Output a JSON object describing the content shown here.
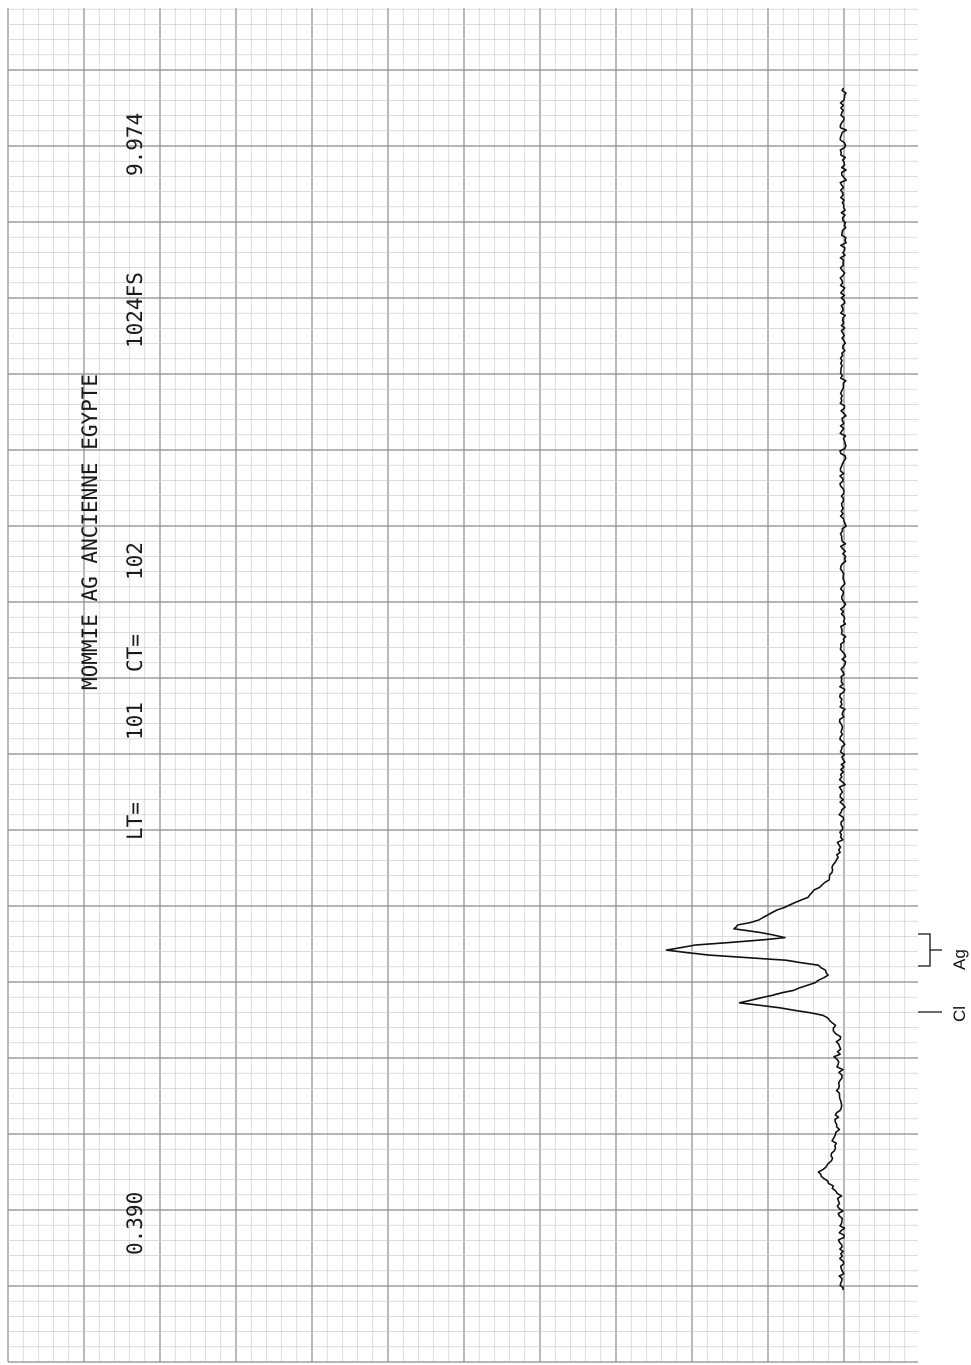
{
  "colors": {
    "paper": "#ffffff",
    "grid_fine": "#c8c8c8",
    "grid_major": "#8a8a8a",
    "trace": "#111111"
  },
  "header": {
    "title": "MOMMIE AG ANCIENNE EGYPTE",
    "lt_label": "LT=",
    "lt_value": "101",
    "ct_label": "CT=",
    "ct_value": "102",
    "fullscale": "1024FS",
    "end_energy": "9.974",
    "start_energy": "0.390"
  },
  "chart_data": {
    "type": "line",
    "title": "MOMMIE AG ANCIENNE EGYPTE",
    "orientation": "rotated: energy axis vertical (0.390 at bottom, 9.974 at top), counts increase to the left",
    "x_label": "",
    "y_label": "",
    "xlim": [
      0.39,
      9.974
    ],
    "ylim": [
      0,
      1024
    ],
    "grid": true,
    "series": [
      {
        "values_note": "energy (keV), counts",
        "points": [
          [
            0.39,
            5
          ],
          [
            0.52,
            8
          ],
          [
            0.66,
            6
          ],
          [
            0.79,
            9
          ],
          [
            0.92,
            7
          ],
          [
            1.06,
            14
          ],
          [
            1.14,
            12
          ],
          [
            1.2,
            24
          ],
          [
            1.28,
            50
          ],
          [
            1.33,
            62
          ],
          [
            1.37,
            46
          ],
          [
            1.42,
            30
          ],
          [
            1.5,
            24
          ],
          [
            1.58,
            28
          ],
          [
            1.67,
            18
          ],
          [
            1.75,
            20
          ],
          [
            1.84,
            14
          ],
          [
            1.92,
            16
          ],
          [
            2.0,
            12
          ],
          [
            2.08,
            10
          ],
          [
            2.17,
            12
          ],
          [
            2.25,
            20
          ],
          [
            2.33,
            14
          ],
          [
            2.41,
            16
          ],
          [
            2.5,
            25
          ],
          [
            2.58,
            50
          ],
          [
            2.64,
            150
          ],
          [
            2.68,
            245
          ],
          [
            2.72,
            200
          ],
          [
            2.78,
            120
          ],
          [
            2.84,
            70
          ],
          [
            2.9,
            38
          ],
          [
            2.94,
            48
          ],
          [
            2.98,
            60
          ],
          [
            3.02,
            140
          ],
          [
            3.06,
            320
          ],
          [
            3.1,
            420
          ],
          [
            3.14,
            350
          ],
          [
            3.18,
            200
          ],
          [
            3.2,
            140
          ],
          [
            3.24,
            200
          ],
          [
            3.27,
            260
          ],
          [
            3.3,
            250
          ],
          [
            3.34,
            200
          ],
          [
            3.4,
            170
          ],
          [
            3.46,
            130
          ],
          [
            3.52,
            90
          ],
          [
            3.58,
            70
          ],
          [
            3.66,
            40
          ],
          [
            3.76,
            30
          ],
          [
            3.86,
            20
          ],
          [
            3.96,
            12
          ],
          [
            4.06,
            10
          ],
          [
            4.2,
            7
          ],
          [
            4.5,
            6
          ],
          [
            5.0,
            6
          ],
          [
            5.5,
            5
          ],
          [
            6.0,
            5
          ],
          [
            6.5,
            4
          ],
          [
            7.0,
            5
          ],
          [
            7.5,
            4
          ],
          [
            8.0,
            5
          ],
          [
            8.5,
            4
          ],
          [
            9.0,
            4
          ],
          [
            9.5,
            4
          ],
          [
            9.974,
            4
          ]
        ]
      }
    ],
    "annotations": [
      {
        "text": "Cl",
        "x": 2.64
      },
      {
        "text": "Ag",
        "x_range": [
          3.1,
          3.32
        ]
      }
    ]
  }
}
